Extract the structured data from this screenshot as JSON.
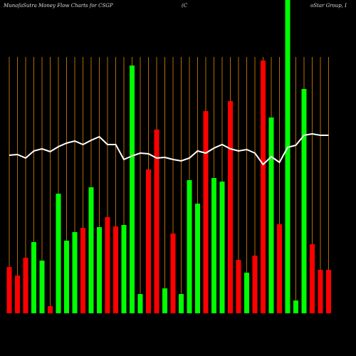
{
  "chart_data": {
    "type": "bar",
    "title": "MunafaSutra  Money Flow  Charts for CSGP",
    "subtitle": "(C",
    "subtitle_cont": "oStar Group, I",
    "categories": [
      null,
      null,
      null,
      null,
      null,
      null,
      null,
      null,
      null,
      null,
      null,
      null,
      null,
      null,
      null,
      null,
      null,
      null,
      null,
      null,
      null,
      null,
      null,
      null,
      null,
      null,
      null,
      null,
      null,
      null,
      null,
      null,
      null,
      null,
      null,
      null,
      null,
      null,
      null,
      null
    ],
    "ylim": [
      0,
      440
    ],
    "series": [
      {
        "name": "money flow",
        "colors": [
          "#ff0000",
          "#ff0000",
          "#ff0000",
          "#00ff00",
          "#00ff00",
          "#ff0000",
          "#00ff00",
          "#00ff00",
          "#00ff00",
          "#ff0000",
          "#00ff00",
          "#00ff00",
          "#ff0000",
          "#ff0000",
          "#00ff00",
          "#00ff00",
          "#00ff00",
          "#ff0000",
          "#ff0000",
          "#00ff00",
          "#ff0000",
          "#00ff00",
          "#00ff00",
          "#00ff00",
          "#ff0000",
          "#00ff00",
          "#00ff00",
          "#ff0000",
          "#ff0000",
          "#00ff00",
          "#ff0000",
          "#ff0000",
          "#00ff00",
          "#ff0000",
          "#00ff00",
          "#00ff00",
          "#00ff00",
          "#ff0000",
          "#ff0000",
          "#ff0000"
        ],
        "values": [
          65,
          53,
          78,
          100,
          74,
          10,
          168,
          102,
          114,
          120,
          177,
          121,
          135,
          122,
          124,
          348,
          27,
          202,
          258,
          35,
          112,
          27,
          187,
          154,
          284,
          190,
          185,
          298,
          75,
          57,
          81,
          355,
          275,
          125,
          440,
          18,
          315,
          97,
          61,
          61
        ]
      },
      {
        "name": "price",
        "type": "line",
        "color": "#ffffff",
        "values": [
          222,
          223,
          218,
          228,
          231,
          227,
          234,
          239,
          242,
          237,
          243,
          248,
          237,
          237,
          216,
          221,
          225,
          224,
          218,
          219,
          216,
          214,
          218,
          228,
          225,
          232,
          237,
          231,
          228,
          230,
          225,
          209,
          220,
          212,
          233,
          236,
          250,
          252,
          250,
          250
        ]
      }
    ]
  }
}
